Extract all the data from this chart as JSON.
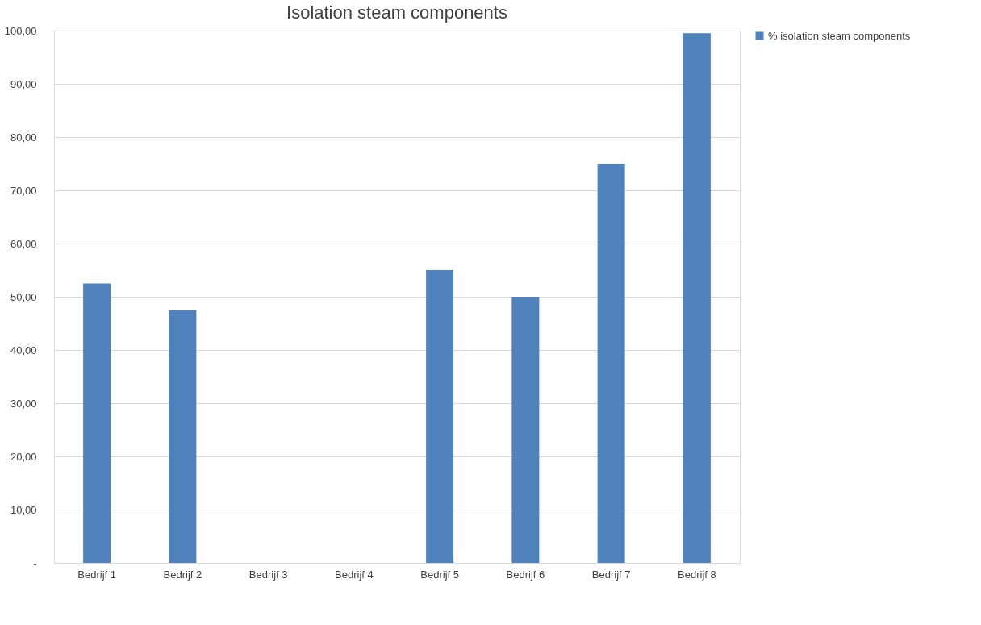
{
  "chart_data": {
    "type": "bar",
    "title": "Isolation steam components",
    "categories": [
      "Bedrijf 1",
      "Bedrijf 2",
      "Bedrijf 3",
      "Bedrijf 4",
      "Bedrijf 5",
      "Bedrijf 6",
      "Bedrijf 7",
      "Bedrijf 8"
    ],
    "series": [
      {
        "name": "% isolation steam components",
        "color": "#4f81bd",
        "values": [
          52.5,
          47.5,
          null,
          null,
          55.0,
          50.0,
          75.0,
          99.5
        ]
      }
    ],
    "ylim": [
      0,
      100
    ],
    "yticks": [
      {
        "value": 0,
        "label": "-"
      },
      {
        "value": 10,
        "label": "10,00"
      },
      {
        "value": 20,
        "label": "20,00"
      },
      {
        "value": 30,
        "label": "30,00"
      },
      {
        "value": 40,
        "label": "40,00"
      },
      {
        "value": 50,
        "label": "50,00"
      },
      {
        "value": 60,
        "label": "60,00"
      },
      {
        "value": 70,
        "label": "70,00"
      },
      {
        "value": 80,
        "label": "80,00"
      },
      {
        "value": 90,
        "label": "90,00"
      },
      {
        "value": 100,
        "label": "100,00"
      }
    ],
    "grid": "y",
    "legend": "right"
  }
}
